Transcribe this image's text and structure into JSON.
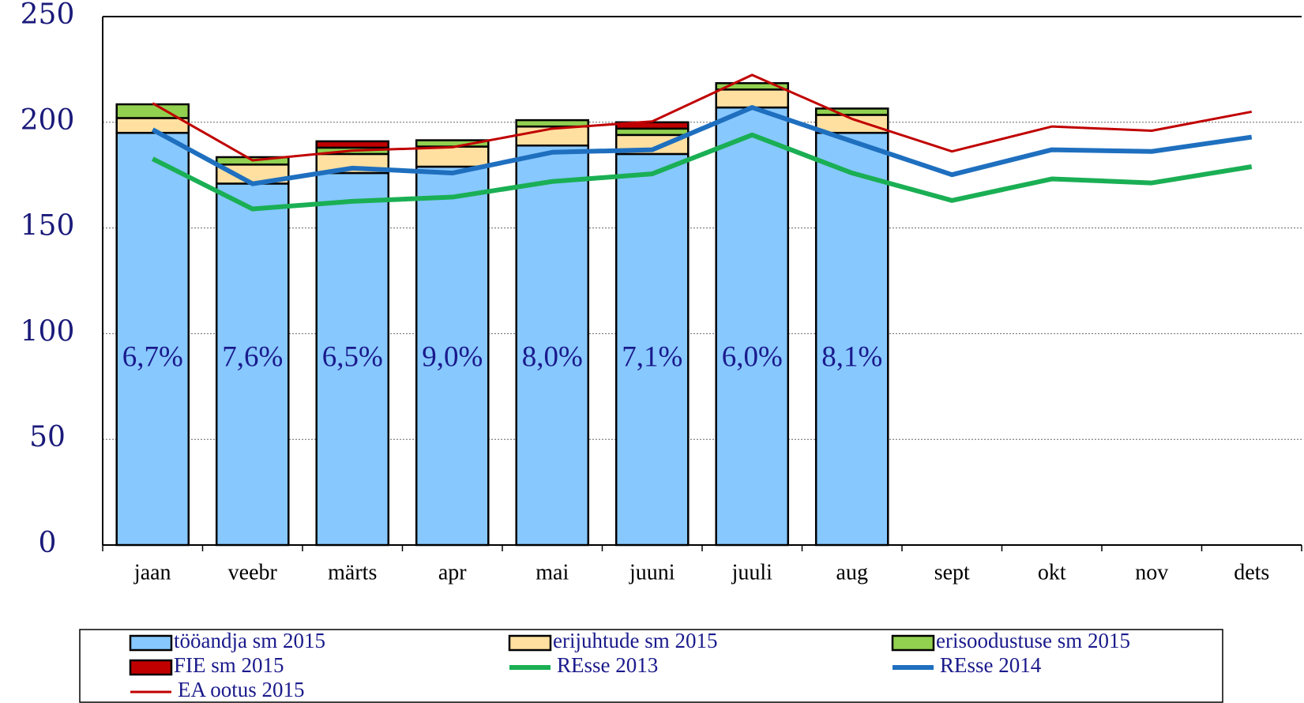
{
  "chart_data": {
    "type": "bar",
    "categories": [
      "jaan",
      "veebr",
      "märts",
      "apr",
      "mai",
      "juuni",
      "juuli",
      "aug",
      "sept",
      "okt",
      "nov",
      "dets"
    ],
    "series": [
      {
        "name": "tööandja sm 2015",
        "type": "bar",
        "color": "#87c8ff",
        "values": [
          195,
          171,
          176,
          179,
          189,
          185,
          207,
          195,
          null,
          null,
          null,
          null
        ]
      },
      {
        "name": "erijuhtude sm 2015",
        "type": "bar",
        "color": "#ffe0a0",
        "values": [
          7,
          9,
          9,
          9.5,
          9,
          9,
          8.5,
          8.5,
          null,
          null,
          null,
          null
        ]
      },
      {
        "name": "erisoodustuse sm 2015",
        "type": "bar",
        "color": "#92d050",
        "values": [
          6.5,
          3.5,
          3,
          3,
          3,
          3,
          3,
          3,
          null,
          null,
          null,
          null
        ]
      },
      {
        "name": "FIE sm 2015",
        "type": "bar",
        "color": "#c00000",
        "values": [
          0,
          0,
          3,
          0,
          0,
          3,
          0,
          0,
          null,
          null,
          null,
          null
        ]
      },
      {
        "name": "REsse 2013",
        "type": "line",
        "color": "#1aaf54",
        "width": 6,
        "values": [
          182.7,
          159,
          162.6,
          164.6,
          172,
          175.6,
          194,
          176,
          163,
          173.2,
          171.3,
          179
        ]
      },
      {
        "name": "REsse 2014",
        "type": "line",
        "color": "#1f6fbf",
        "width": 6,
        "values": [
          196.5,
          170.9,
          178.3,
          176,
          185.8,
          187,
          207,
          191,
          175.2,
          187,
          186.2,
          193
        ]
      },
      {
        "name": "EA ootus 2015",
        "type": "line",
        "color": "#c00000",
        "width": 3,
        "values": [
          209,
          182,
          186.6,
          188.2,
          197,
          200.4,
          222.4,
          201.6,
          186.2,
          198,
          196,
          205
        ]
      }
    ],
    "annotations": [
      "6,7%",
      "7,6%",
      "6,5%",
      "9,0%",
      "8,0%",
      "7,1%",
      "6,0%",
      "8,1%",
      null,
      null,
      null,
      null
    ],
    "ylim": [
      0,
      250
    ],
    "yticks": [
      0,
      50,
      100,
      150,
      200,
      250
    ],
    "grid": true,
    "legend": "bottom"
  }
}
